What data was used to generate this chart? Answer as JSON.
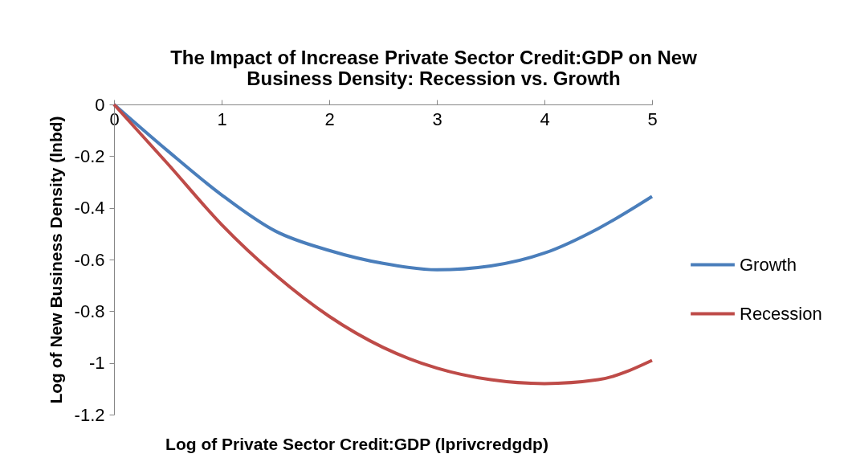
{
  "chart_data": {
    "type": "line",
    "title": "The Impact of Increase Private Sector Credit:GDP on New Business Density: Recession vs. Growth",
    "xlabel": "Log of Private Sector Credit:GDP (lprivcredgdp)",
    "ylabel": "Log of New Business Density (lnbd)",
    "x": [
      0,
      0.5,
      1,
      1.5,
      2,
      2.5,
      3,
      3.5,
      4,
      4.5,
      5
    ],
    "series": [
      {
        "name": "Growth",
        "color": "#4a7ebb",
        "values": [
          0,
          -0.18,
          -0.35,
          -0.49,
          -0.565,
          -0.615,
          -0.64,
          -0.625,
          -0.575,
          -0.48,
          -0.356
        ]
      },
      {
        "name": "Recession",
        "color": "#be4b48",
        "values": [
          0,
          -0.23,
          -0.465,
          -0.66,
          -0.82,
          -0.94,
          -1.02,
          -1.065,
          -1.08,
          -1.065,
          -0.99
        ]
      }
    ],
    "xlim": [
      0,
      5
    ],
    "xticks": [
      0,
      1,
      2,
      3,
      4,
      5
    ],
    "ylim": [
      -1.2,
      0
    ],
    "yticks": [
      -1.2,
      -1,
      -0.8,
      -0.6,
      -0.4,
      -0.2,
      0
    ],
    "grid": false,
    "legend": "right",
    "line_style": "solid",
    "marker": "none"
  }
}
